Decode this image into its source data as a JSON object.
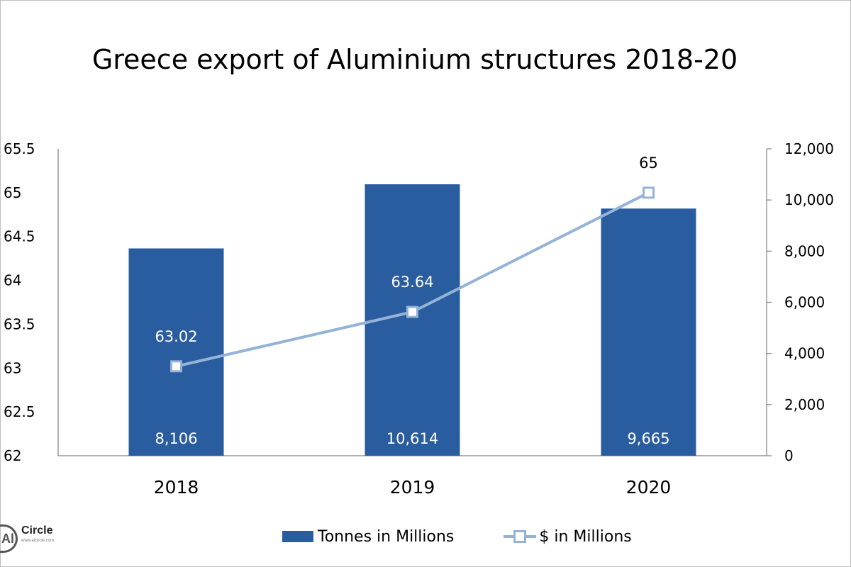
{
  "chart_data": {
    "type": "bar",
    "title": "Greece export of Aluminium structures 2018-20",
    "categories": [
      "2018",
      "2019",
      "2020"
    ],
    "series": [
      {
        "name": "Tonnes in Millions",
        "type": "bar",
        "axis": "right",
        "values": [
          8106,
          10614,
          9665
        ],
        "value_labels": [
          "8,106",
          "10,614",
          "9,665"
        ],
        "color": "#2a5d9f"
      },
      {
        "name": "$ in Millions",
        "type": "line",
        "axis": "left",
        "values": [
          63.02,
          63.64,
          65
        ],
        "value_labels": [
          "63.02",
          "63.64",
          "65"
        ],
        "color": "#95b3d7"
      }
    ],
    "left_axis": {
      "ylim": [
        62,
        65.5
      ],
      "ticks": [
        "62",
        "62.5",
        "63",
        "63.5",
        "64",
        "64.5",
        "65",
        "65.5"
      ]
    },
    "right_axis": {
      "ylim": [
        0,
        12000
      ],
      "ticks": [
        "0",
        "2,000",
        "4,000",
        "6,000",
        "8,000",
        "10,000",
        "12,000"
      ]
    },
    "grid": false,
    "legend_position": "bottom"
  },
  "legend": {
    "bar_label": "Tonnes in Millions",
    "line_label": "$ in Millions"
  },
  "logo": {
    "mark": "Al",
    "word": "Circle",
    "url": "www.alcircle.com"
  }
}
